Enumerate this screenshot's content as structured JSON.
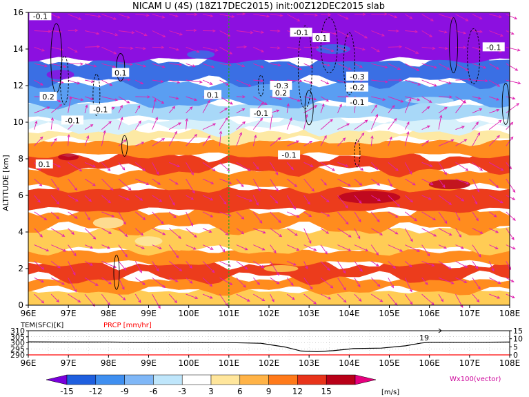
{
  "chart_data": [
    {
      "type": "heatmap",
      "title": "NICAM  U  (4S)  (18Z17DEC2015)  init:00Z12DEC2015  slab",
      "ylabel": "ALTITUDE  [km]",
      "x_ticks": [
        "96E",
        "97E",
        "98E",
        "99E",
        "100E",
        "101E",
        "102E",
        "103E",
        "104E",
        "105E",
        "106E",
        "107E",
        "108E"
      ],
      "y_ticks": [
        "0",
        "2",
        "4",
        "6",
        "8",
        "10",
        "12",
        "14",
        "16"
      ],
      "xlim": [
        96,
        108
      ],
      "ylim": [
        0,
        16
      ],
      "marker_line_lon": 101.0,
      "bands": [
        {
          "z0": 0.0,
          "z1": 0.8,
          "level": 6
        },
        {
          "z0": 0.8,
          "z1": 1.5,
          "level": 9
        },
        {
          "z0": 1.5,
          "z1": 2.3,
          "level": 12
        },
        {
          "z0": 2.3,
          "z1": 3.0,
          "level": 9
        },
        {
          "z0": 3.0,
          "z1": 4.2,
          "level": 6
        },
        {
          "z0": 4.2,
          "z1": 5.2,
          "level": 9
        },
        {
          "z0": 5.2,
          "z1": 6.4,
          "level": 12
        },
        {
          "z0": 6.4,
          "z1": 7.4,
          "level": 9
        },
        {
          "z0": 7.4,
          "z1": 8.2,
          "level": 12
        },
        {
          "z0": 8.2,
          "z1": 9.0,
          "level": 9
        },
        {
          "z0": 9.0,
          "z1": 9.6,
          "level": 3
        },
        {
          "z0": 9.6,
          "z1": 10.2,
          "level": -3
        },
        {
          "z0": 10.2,
          "z1": 11.0,
          "level": -6
        },
        {
          "z0": 11.0,
          "z1": 12.2,
          "level": -9
        },
        {
          "z0": 12.2,
          "z1": 13.4,
          "level": -12
        },
        {
          "z0": 13.4,
          "z1": 16.0,
          "level": -15
        }
      ],
      "contour_labels": [
        {
          "text": "-0.1",
          "lon": 96.3,
          "z": 15.8
        },
        {
          "text": "-0.1",
          "lon": 102.8,
          "z": 14.9
        },
        {
          "text": "0.1",
          "lon": 103.3,
          "z": 14.6
        },
        {
          "text": "-0.1",
          "lon": 107.6,
          "z": 14.1
        },
        {
          "text": "0.1",
          "lon": 98.3,
          "z": 12.7
        },
        {
          "text": "-0.3",
          "lon": 104.2,
          "z": 12.5
        },
        {
          "text": "-0.3",
          "lon": 102.3,
          "z": 12.0
        },
        {
          "text": "-0.2",
          "lon": 104.2,
          "z": 11.9
        },
        {
          "text": "0.2",
          "lon": 102.3,
          "z": 11.6
        },
        {
          "text": "0.2",
          "lon": 96.5,
          "z": 11.4
        },
        {
          "text": "0.1",
          "lon": 100.6,
          "z": 11.5
        },
        {
          "text": "-0.1",
          "lon": 104.2,
          "z": 11.1
        },
        {
          "text": "-0.1",
          "lon": 97.8,
          "z": 10.7
        },
        {
          "text": "-0.1",
          "lon": 101.8,
          "z": 10.5
        },
        {
          "text": "-0.1",
          "lon": 97.1,
          "z": 10.1
        },
        {
          "text": "-0.1",
          "lon": 102.5,
          "z": 8.2
        },
        {
          "text": "0.1",
          "lon": 96.4,
          "z": 7.7
        }
      ]
    },
    {
      "type": "line",
      "legend": [
        "TEM(SFC)[K]",
        "PRCP [mm/hr]"
      ],
      "x_ticks": [
        "96E",
        "97E",
        "98E",
        "99E",
        "100E",
        "101E",
        "102E",
        "103E",
        "104E",
        "105E",
        "106E",
        "107E",
        "108E"
      ],
      "y_left_ticks": [
        "310",
        "305",
        "300",
        "295",
        "290"
      ],
      "y_right_ticks": [
        "15",
        "10",
        "5",
        "0"
      ],
      "xlim": [
        96,
        108
      ],
      "ylim_left": [
        290,
        310
      ],
      "ylim_right": [
        0,
        15
      ],
      "series": [
        {
          "name": "TEM(SFC)[K]",
          "color": "#000000",
          "x": [
            96,
            97,
            98,
            99,
            100,
            101,
            101.8,
            102.4,
            102.8,
            103.2,
            103.6,
            104.1,
            104.8,
            105.4,
            105.8,
            106.0,
            107,
            108
          ],
          "y": [
            300.8,
            300.6,
            300.7,
            300.3,
            300.5,
            300.2,
            299.6,
            296.5,
            293.2,
            292.6,
            293.5,
            295.2,
            295.6,
            297.5,
            299.8,
            300.5,
            300.4,
            300.6
          ]
        },
        {
          "name": "PRCP [mm/hr]",
          "color": "#ff0000",
          "x": [
            96,
            108
          ],
          "y": [
            0,
            0
          ]
        }
      ],
      "annotation": "19"
    }
  ],
  "colorbar": {
    "ticks": [
      "-15",
      "-12",
      "-9",
      "-6",
      "-3",
      "3",
      "6",
      "9",
      "12",
      "15"
    ],
    "unit": "[m/s]",
    "colors": [
      "#7a00dc",
      "#1f5fdf",
      "#3f8ff0",
      "#7fb7f7",
      "#bfe6fb",
      "#ffffff",
      "#ffe69c",
      "#ffb347",
      "#ff7a1a",
      "#e8341a",
      "#b80018",
      "#e6007e"
    ]
  },
  "vector_label": "Wx100(vector)"
}
